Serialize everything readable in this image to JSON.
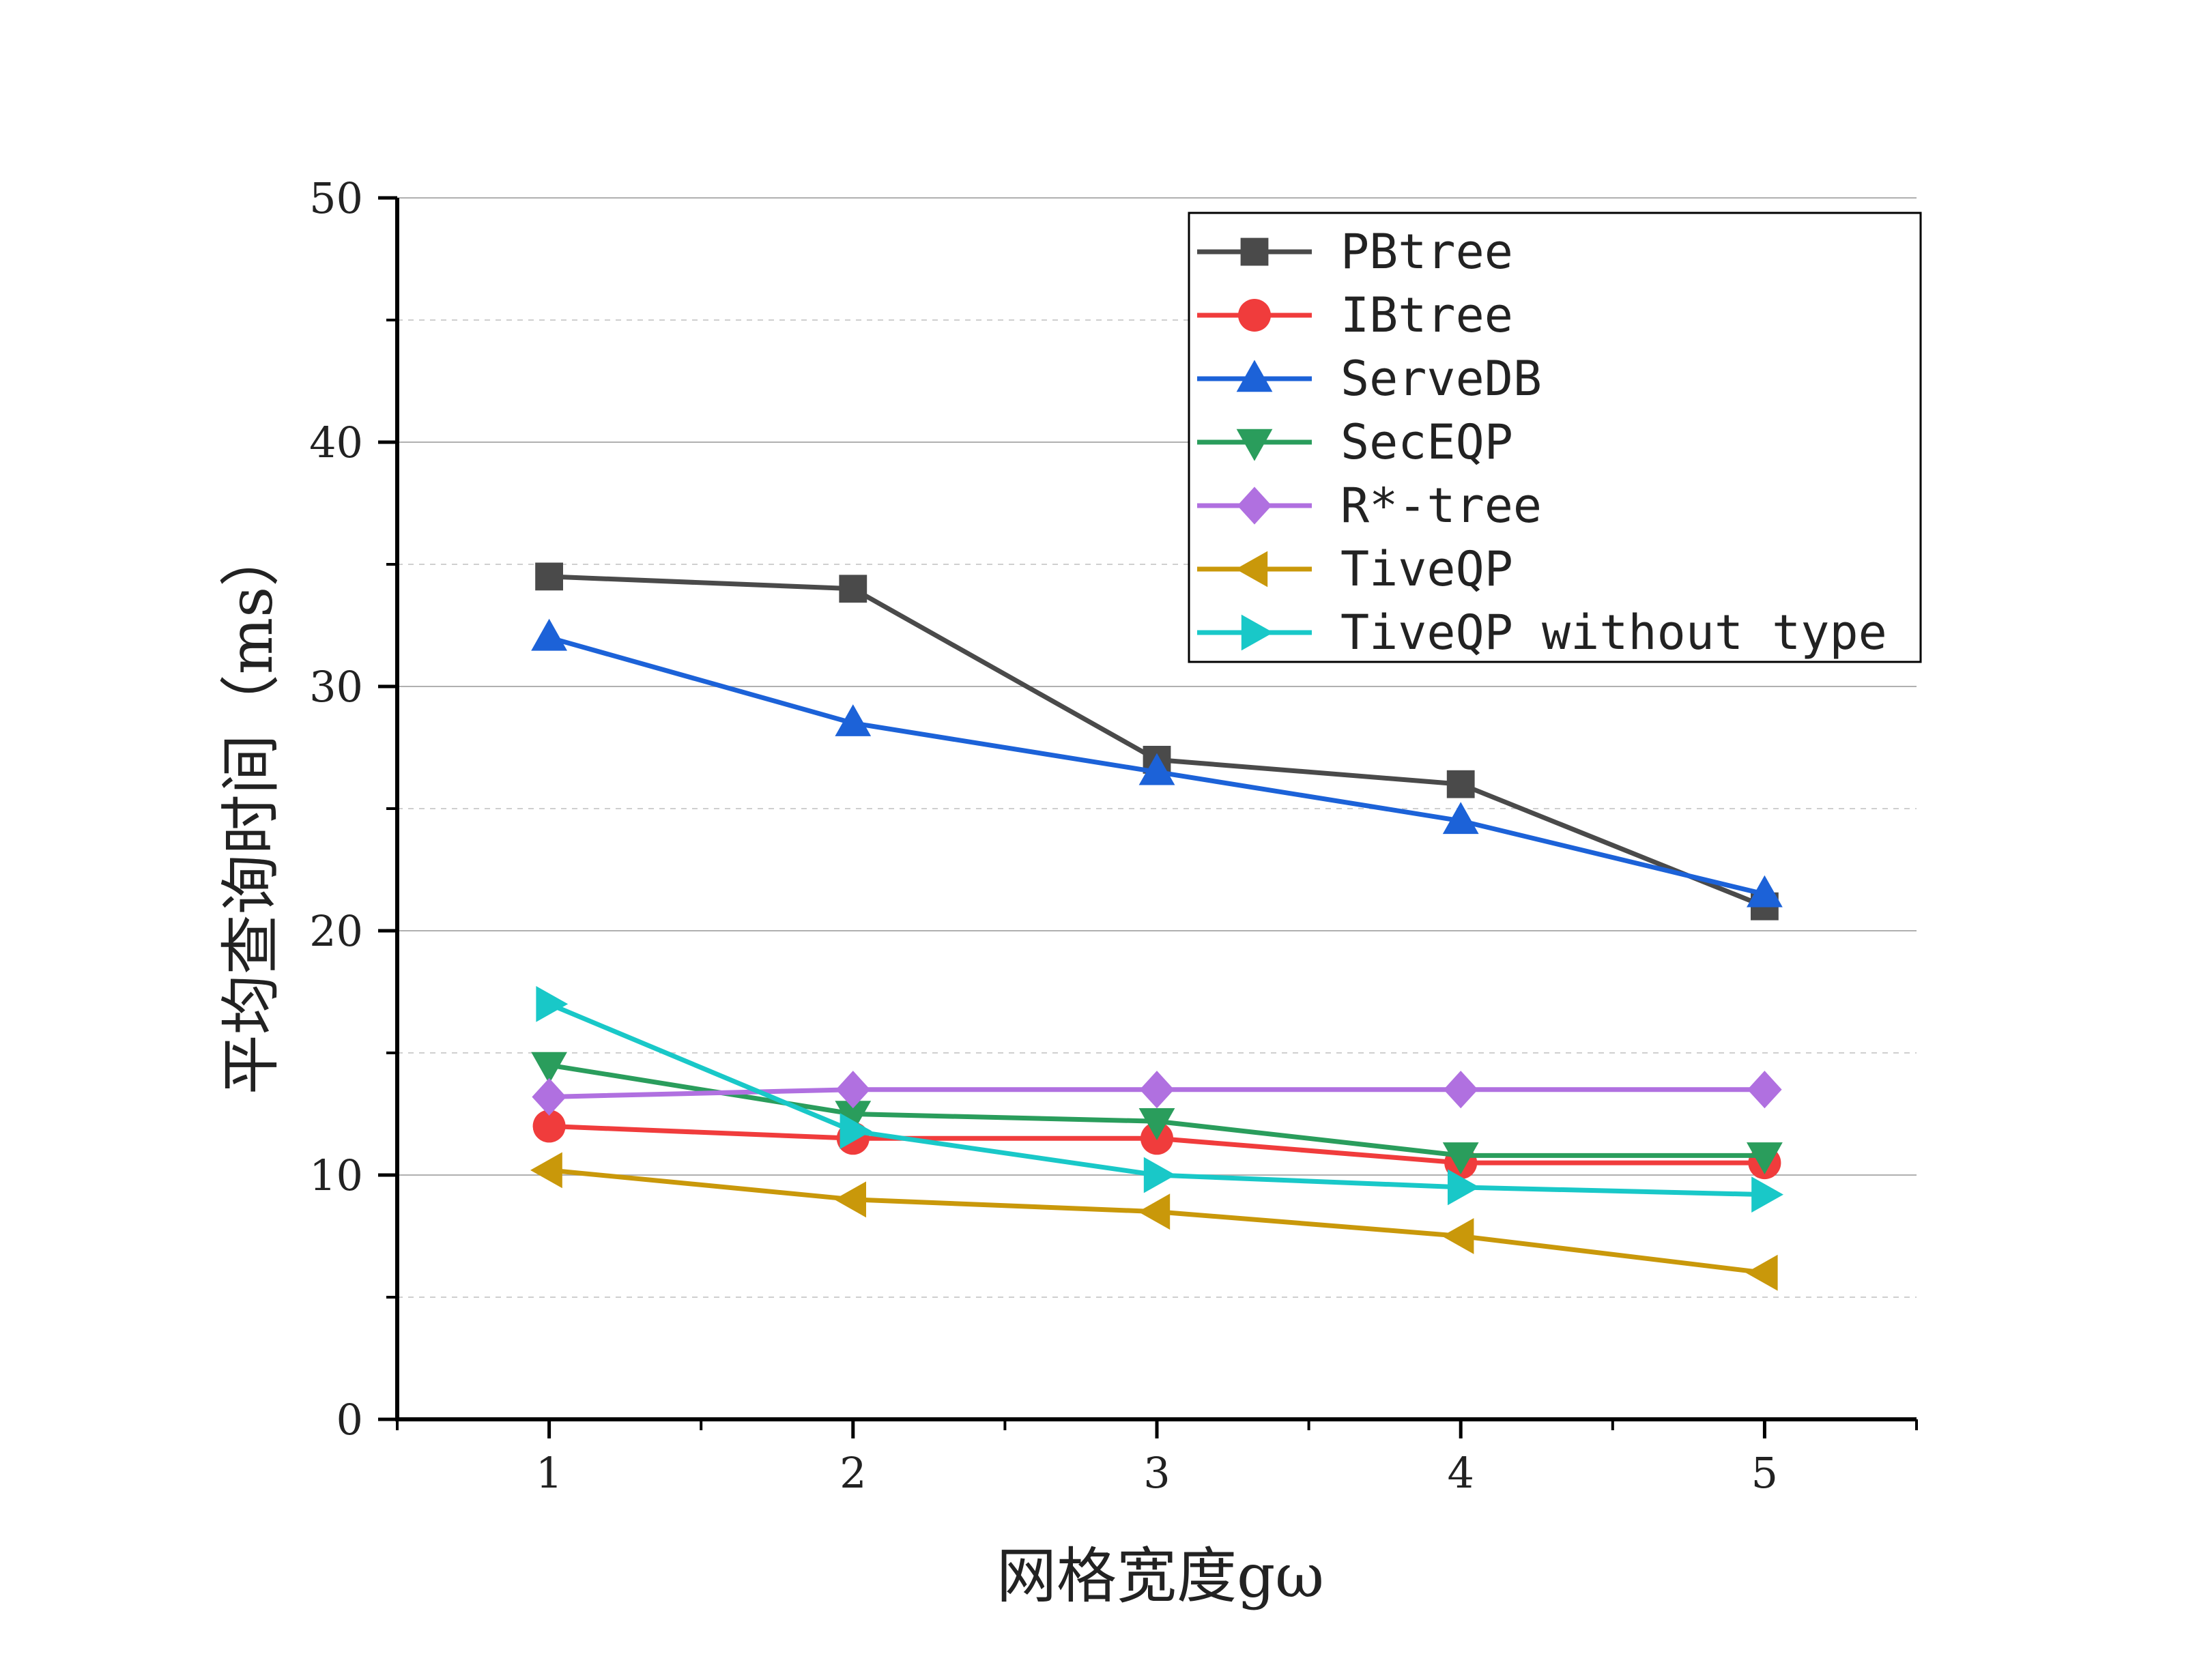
{
  "chart_data": {
    "type": "line",
    "title": "",
    "xlabel": "网格宽度gω",
    "ylabel": "平均查询时间（ms）",
    "x": [
      1,
      2,
      3,
      4,
      5
    ],
    "x_ticks": [
      "1",
      "2",
      "3",
      "4",
      "5"
    ],
    "xlim": [
      0.5,
      5.5
    ],
    "ylim": [
      0,
      50
    ],
    "y_ticks": [
      "0",
      "10",
      "20",
      "30",
      "40",
      "50"
    ],
    "grid": "major solid, minor dashed",
    "legend_position": "top-right",
    "series": [
      {
        "name": "PBtree",
        "values": [
          34.5,
          34,
          27,
          26,
          21
        ],
        "color": "#4a4a4a",
        "marker": "square"
      },
      {
        "name": "IBtree",
        "values": [
          12,
          11.5,
          11.5,
          10.5,
          10.5
        ],
        "color": "#f03c3c",
        "marker": "circle"
      },
      {
        "name": "ServeDB",
        "values": [
          32,
          28.5,
          26.5,
          24.5,
          21.5
        ],
        "color": "#1c62d8",
        "marker": "triangle-up"
      },
      {
        "name": "SecEQP",
        "values": [
          14.5,
          12.5,
          12.2,
          10.8,
          10.8
        ],
        "color": "#2a9d5c",
        "marker": "triangle-down"
      },
      {
        "name": "R*-tree",
        "values": [
          13.2,
          13.5,
          13.5,
          13.5,
          13.5
        ],
        "color": "#b070e0",
        "marker": "diamond"
      },
      {
        "name": "TiveQP",
        "values": [
          10.2,
          9,
          8.5,
          7.5,
          6
        ],
        "color": "#c9980a",
        "marker": "triangle-left"
      },
      {
        "name": "TiveQP without type",
        "values": [
          17,
          11.8,
          10,
          9.5,
          9.2
        ],
        "color": "#19c8c8",
        "marker": "triangle-right"
      }
    ]
  }
}
